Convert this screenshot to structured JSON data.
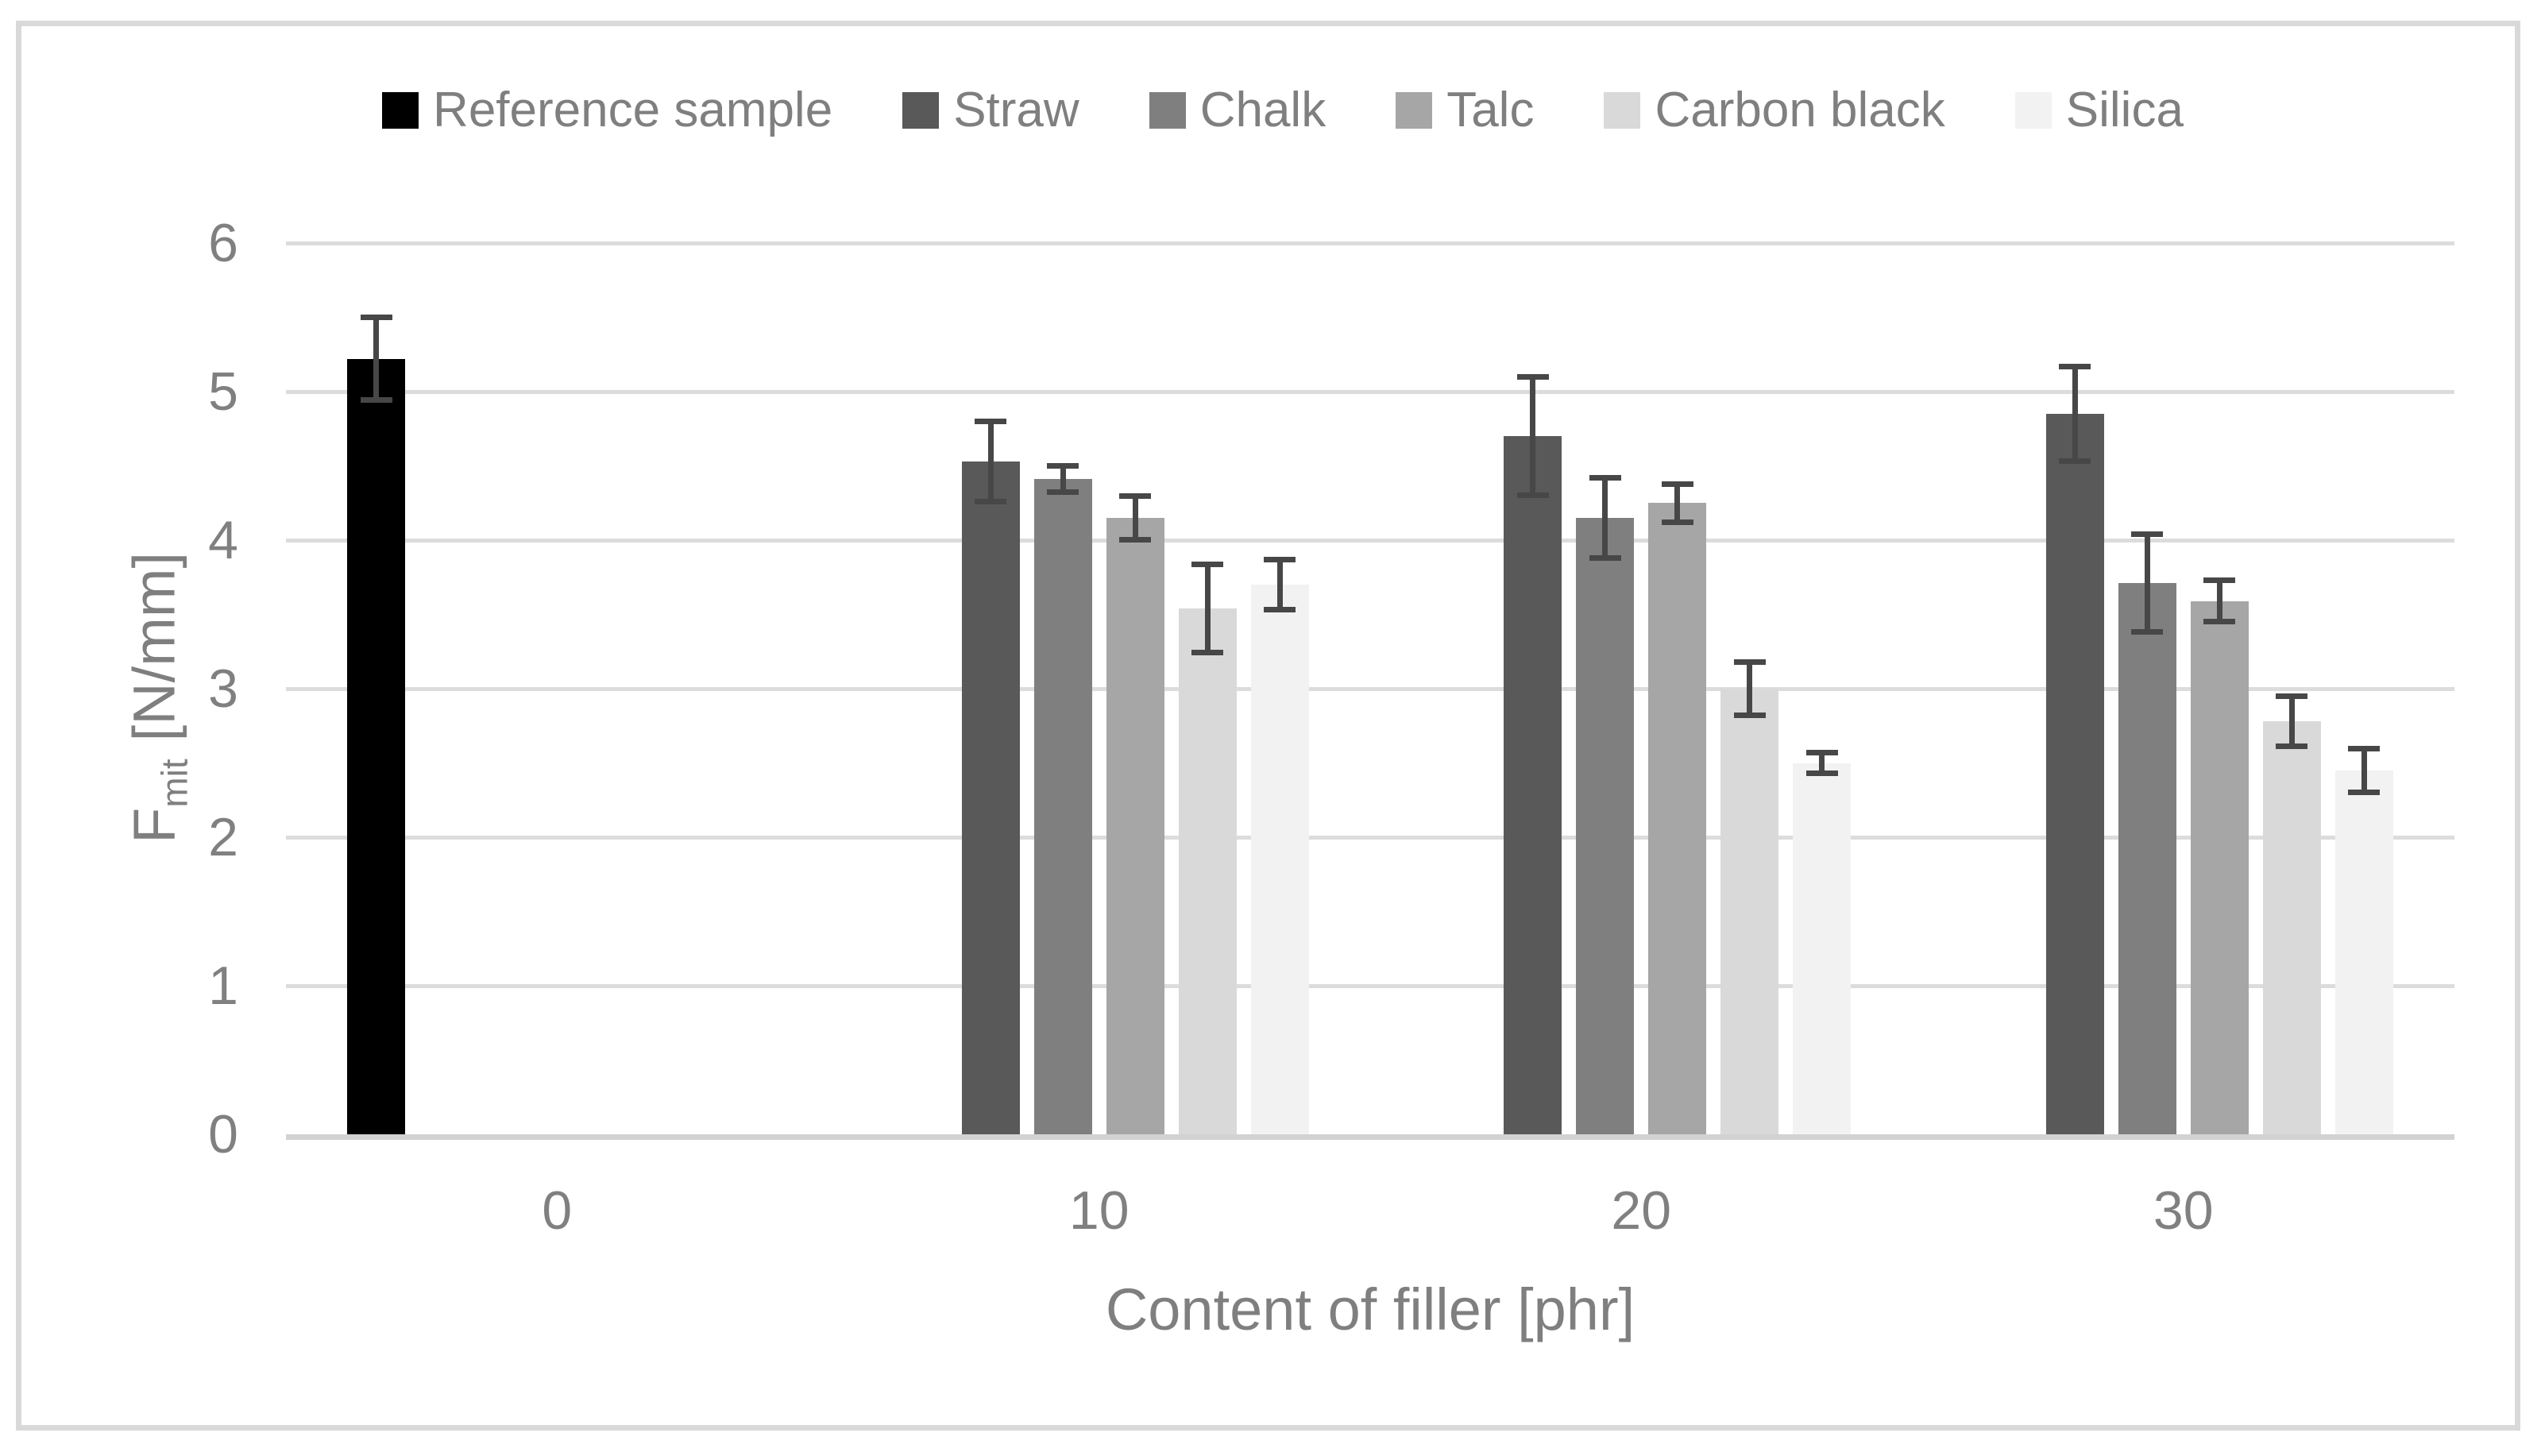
{
  "chart_data": {
    "type": "bar",
    "title": "",
    "xlabel": "Content of filler [phr]",
    "ylabel": "Fmit [N/mm]",
    "ylabel_parts": {
      "main": "F",
      "sub": "mit",
      "unit": "[N/mm]"
    },
    "ylim": [
      0,
      6
    ],
    "yticks": [
      0,
      1,
      2,
      3,
      4,
      5,
      6
    ],
    "categories": [
      "0",
      "10",
      "20",
      "30"
    ],
    "series": [
      {
        "name": "Reference sample",
        "color": "#000000",
        "values": [
          5.22,
          null,
          null,
          null
        ],
        "errors": [
          0.26,
          null,
          null,
          null
        ]
      },
      {
        "name": "Straw",
        "color": "#595959",
        "values": [
          null,
          4.53,
          4.7,
          4.85
        ],
        "errors": [
          null,
          0.25,
          0.38,
          0.3
        ]
      },
      {
        "name": "Chalk",
        "color": "#7f7f7f",
        "values": [
          null,
          4.41,
          4.15,
          3.71
        ],
        "errors": [
          null,
          0.07,
          0.25,
          0.31
        ]
      },
      {
        "name": "Talc",
        "color": "#a6a6a6",
        "values": [
          null,
          4.15,
          4.25,
          3.59
        ],
        "errors": [
          null,
          0.13,
          0.11,
          0.12
        ]
      },
      {
        "name": "Carbon black",
        "color": "#d9d9d9",
        "values": [
          null,
          3.54,
          3.0,
          2.78
        ],
        "errors": [
          null,
          0.28,
          0.16,
          0.15
        ]
      },
      {
        "name": "Silica",
        "color": "#f2f2f2",
        "values": [
          null,
          3.7,
          2.5,
          2.45
        ],
        "errors": [
          null,
          0.15,
          0.05,
          0.13
        ]
      }
    ],
    "legend_position": "top",
    "grid": true,
    "error_bar_color": "#474747",
    "text_color": "#7f7f7f",
    "grid_color": "#dcdcdc",
    "frame_color": "#d9d9d9"
  }
}
